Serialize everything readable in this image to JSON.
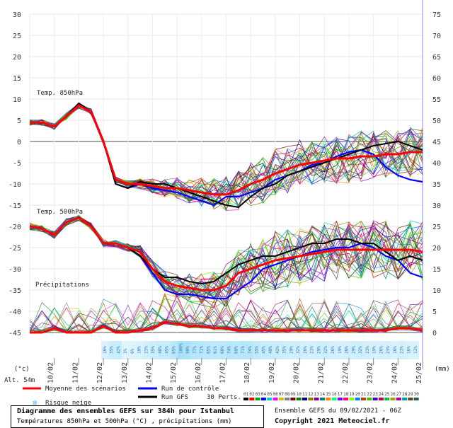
{
  "chart_data": {
    "type": "line",
    "left_axis_ticks": [
      30,
      25,
      20,
      15,
      10,
      5,
      0,
      -5,
      -10,
      -15,
      -20,
      -25,
      -30,
      -35,
      -40,
      -45
    ],
    "right_axis_ticks": [
      75,
      70,
      65,
      60,
      55,
      50,
      45,
      40,
      35,
      30,
      25,
      20,
      15,
      10,
      5,
      0
    ],
    "left_unit": "(°c)",
    "right_unit": "(mm)",
    "altitude_label": "Alt. 54m",
    "date_labels": [
      "10/02",
      "11/02",
      "12/02",
      "13/02",
      "14/02",
      "15/02",
      "16/02",
      "17/02",
      "18/02",
      "19/02",
      "20/02",
      "21/02",
      "22/02",
      "23/02",
      "24/02",
      "25/02"
    ],
    "panel_labels": {
      "t850": "Temp. 850hPa",
      "t500": "Temp. 500hPa",
      "precip": "Précipitations"
    },
    "x_days": [
      0,
      0.5,
      1,
      1.5,
      2,
      2.5,
      3,
      3.5,
      4,
      4.5,
      5,
      5.5,
      6,
      6.5,
      7,
      7.5,
      8,
      8.5,
      9,
      9.5,
      10,
      10.5,
      11,
      11.5,
      12,
      12.5,
      13,
      13.5,
      14,
      14.5,
      15,
      15.5,
      16
    ],
    "series": [
      {
        "name": "Moyenne des scénarios",
        "panel": "t850",
        "values": [
          4.5,
          4.5,
          3.5,
          6,
          8.5,
          7,
          0,
          -9,
          -10,
          -10,
          -10.5,
          -11,
          -11,
          -11.5,
          -12,
          -12.5,
          -12.5,
          -11.5,
          -10,
          -9,
          -7.5,
          -6.5,
          -5.5,
          -5,
          -4.5,
          -4,
          -4,
          -3.5,
          -3.5,
          -3,
          -3,
          -2.5,
          -2.5
        ]
      },
      {
        "name": "Moyenne des scénarios",
        "panel": "t500",
        "values": [
          -20,
          -20.5,
          -22,
          -19,
          -18,
          -20,
          -24,
          -24,
          -25,
          -26,
          -30,
          -33,
          -34,
          -34.5,
          -35,
          -35,
          -34,
          -31,
          -30,
          -29,
          -28,
          -27.5,
          -27,
          -26.5,
          -26,
          -25.5,
          -25.5,
          -25.5,
          -25.5,
          -25.5,
          -25.5,
          -25.5,
          -26
        ]
      },
      {
        "name": "Moyenne des scénarios",
        "panel": "precip",
        "values": [
          0,
          0,
          1,
          0,
          0,
          0,
          1.5,
          0,
          0,
          0.5,
          1,
          2.5,
          2,
          1.5,
          1.5,
          1,
          1,
          0.5,
          0.5,
          0.5,
          0.5,
          0.5,
          0.5,
          0.5,
          0.5,
          0.5,
          0.5,
          0.5,
          0.5,
          0.5,
          1,
          1,
          0.5
        ]
      },
      {
        "name": "Run de contrôle",
        "panel": "t850",
        "values": [
          4.5,
          4.5,
          3.5,
          6,
          9,
          7,
          0,
          -10,
          -11,
          -10,
          -11,
          -11.5,
          -12,
          -13,
          -14,
          -15,
          -13,
          -13,
          -12,
          -11,
          -9,
          -8,
          -7,
          -5.5,
          -5,
          -3.5,
          -2.5,
          -2,
          -3,
          -6,
          -8,
          -9,
          -9.5
        ]
      },
      {
        "name": "Run de contrôle",
        "panel": "t500",
        "values": [
          -20,
          -20.5,
          -22,
          -19,
          -18,
          -20,
          -24,
          -24,
          -25,
          -27,
          -31,
          -35,
          -36,
          -36,
          -36.5,
          -37,
          -37,
          -35,
          -33,
          -30,
          -29,
          -28,
          -27,
          -26,
          -25.5,
          -25,
          -25,
          -24,
          -25,
          -27,
          -28,
          -31,
          -32
        ]
      },
      {
        "name": "Run GFS",
        "panel": "t850",
        "values": [
          4.5,
          4.5,
          3.5,
          6,
          9,
          7,
          0,
          -10,
          -11,
          -9.5,
          -10,
          -10,
          -11,
          -12,
          -13,
          -14,
          -15,
          -15.5,
          -13,
          -11,
          -10,
          -8,
          -7,
          -6,
          -5,
          -4,
          -3,
          -2,
          -1,
          -0.5,
          0,
          -1,
          -2
        ]
      },
      {
        "name": "Run GFS",
        "panel": "t500",
        "values": [
          -20,
          -20.5,
          -22,
          -19,
          -18,
          -20,
          -24,
          -24,
          -25,
          -27,
          -30,
          -32,
          -32,
          -33,
          -33.5,
          -33,
          -31,
          -29,
          -28,
          -27,
          -27,
          -26,
          -25,
          -24,
          -24,
          -23,
          -23,
          -24,
          -24,
          -26,
          -28,
          -27,
          -28
        ]
      }
    ],
    "snow_risk_percent": [
      "16%",
      "35%",
      "42%",
      "3%",
      "6%",
      "10%",
      "23%",
      "35%",
      "48%",
      "45%",
      "65%",
      "100%",
      "90%",
      "77%",
      "71%",
      "65%",
      "61%",
      "68%",
      "74%",
      "68%",
      "71%",
      "74%",
      "55%",
      "45%",
      "48%",
      "42%",
      "35%",
      "29%",
      "32%",
      "26%",
      "23%",
      "29%",
      "32%",
      "26%",
      "19%",
      "26%",
      "29%",
      "32%",
      "23%",
      "19%",
      "26%",
      "23%",
      "16%",
      "23%",
      "16%",
      "13%"
    ],
    "perturbation_numbers": [
      "01",
      "02",
      "03",
      "04",
      "05",
      "06",
      "07",
      "08",
      "09",
      "10",
      "11",
      "12",
      "13",
      "14",
      "15",
      "16",
      "17",
      "18",
      "19",
      "20",
      "21",
      "22",
      "23",
      "24",
      "25",
      "26",
      "27",
      "28",
      "29",
      "30"
    ]
  },
  "legend": {
    "mean": "Moyenne des scénarios",
    "control": "Run de contrôle",
    "gfs": "Run GFS",
    "perts": "30 Perts.",
    "snow": "Risque neige"
  },
  "footer": {
    "title": "Diagramme des ensembles GEFS sur 384h pour Istanbul",
    "subtitle": "Températures 850hPa et 500hPa (°C) , précipitations (mm)",
    "ensemble": "Ensemble GEFS du 09/02/2021 - 06Z",
    "copyright": "Copyright 2021 Meteociel.fr"
  },
  "colors": {
    "mean": "#ff0000",
    "control": "#0000ff",
    "gfs": "#000000",
    "snow": "#a8e0f8",
    "perts": [
      "#000000",
      "#ff0000",
      "#00aa00",
      "#0000ff",
      "#00c8c8",
      "#ff00ff",
      "#c8c800",
      "#808080",
      "#800000",
      "#008000",
      "#000080",
      "#808000",
      "#800080",
      "#008080",
      "#ff8000",
      "#00ff80",
      "#8000ff",
      "#ff0080",
      "#80ff00",
      "#0080ff",
      "#c04000",
      "#40c000",
      "#4000c0",
      "#c00040",
      "#00c040",
      "#a0a000",
      "#a000a0",
      "#00a0a0",
      "#604020",
      "#206040"
    ]
  }
}
